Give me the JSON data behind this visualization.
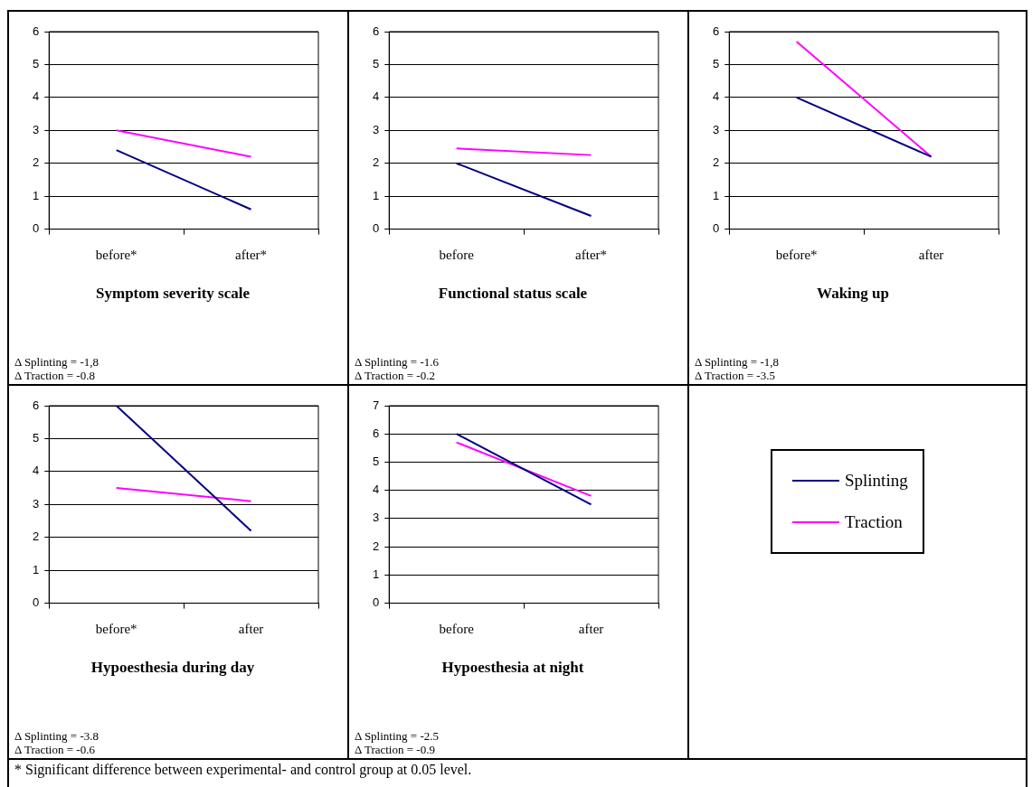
{
  "chart_data": [
    {
      "type": "line",
      "title": "Symptom severity scale",
      "categories": [
        "before*",
        "after*"
      ],
      "ylim": [
        0,
        6
      ],
      "yticks": [
        0,
        1,
        2,
        3,
        4,
        5,
        6
      ],
      "grid": "y",
      "line_style": "solid",
      "marker": "none",
      "legend": "bottom right",
      "series": [
        {
          "name": "Splinting",
          "color": "#000080",
          "values": [
            2.4,
            0.6
          ]
        },
        {
          "name": "Traction",
          "color": "#ff00ff",
          "values": [
            3.0,
            2.2
          ]
        }
      ],
      "annotations": [
        "Δ Splinting = -1,8",
        "Δ Traction = -0.8"
      ]
    },
    {
      "type": "line",
      "title": "Functional status scale",
      "categories": [
        "before",
        "after*"
      ],
      "ylim": [
        0,
        6
      ],
      "yticks": [
        0,
        1,
        2,
        3,
        4,
        5,
        6
      ],
      "grid": "y",
      "line_style": "solid",
      "marker": "none",
      "series": [
        {
          "color": "#000080",
          "values": [
            2.0,
            0.4
          ]
        },
        {
          "color": "#ff00ff",
          "values": [
            2.45,
            2.25
          ]
        }
      ],
      "annotations": [
        "Δ Splinting = -1.6",
        "Δ Traction = -0.2"
      ]
    },
    {
      "type": "line",
      "title": "Waking up",
      "categories": [
        "before*",
        "after"
      ],
      "ylim": [
        0,
        6
      ],
      "yticks": [
        0,
        1,
        2,
        3,
        4,
        5,
        6
      ],
      "grid": "y",
      "line_style": "solid",
      "marker": "none",
      "series": [
        {
          "color": "#000080",
          "values": [
            4.0,
            2.2
          ]
        },
        {
          "color": "#ff00ff",
          "values": [
            5.7,
            2.2
          ]
        }
      ],
      "annotations": [
        "Δ Splinting = -1,8",
        "Δ Traction = -3.5"
      ]
    },
    {
      "type": "line",
      "title": "Hypoesthesia during day",
      "categories": [
        "before*",
        "after"
      ],
      "ylim": [
        0,
        6
      ],
      "yticks": [
        0,
        1,
        2,
        3,
        4,
        5,
        6
      ],
      "grid": "y",
      "line_style": "solid",
      "marker": "none",
      "series": [
        {
          "color": "#000080",
          "values": [
            6.0,
            2.2
          ]
        },
        {
          "color": "#ff00ff",
          "values": [
            3.5,
            3.1
          ]
        }
      ],
      "annotations": [
        "Δ Splinting = -3.8",
        "Δ Traction = -0.6"
      ]
    },
    {
      "type": "line",
      "title": "Hypoesthesia at night",
      "categories": [
        "before",
        "after"
      ],
      "ylim": [
        0,
        7
      ],
      "yticks": [
        0,
        1,
        2,
        3,
        4,
        5,
        6,
        7
      ],
      "grid": "y",
      "line_style": "solid",
      "marker": "none",
      "series": [
        {
          "color": "#000080",
          "values": [
            6.0,
            3.5
          ]
        },
        {
          "color": "#ff00ff",
          "values": [
            5.7,
            3.8
          ]
        }
      ],
      "annotations": [
        "Δ Splinting = -2.5",
        "Δ Traction = -0.9",
        "* Significant difference between experimental- and control group at 0.05 level."
      ]
    }
  ]
}
